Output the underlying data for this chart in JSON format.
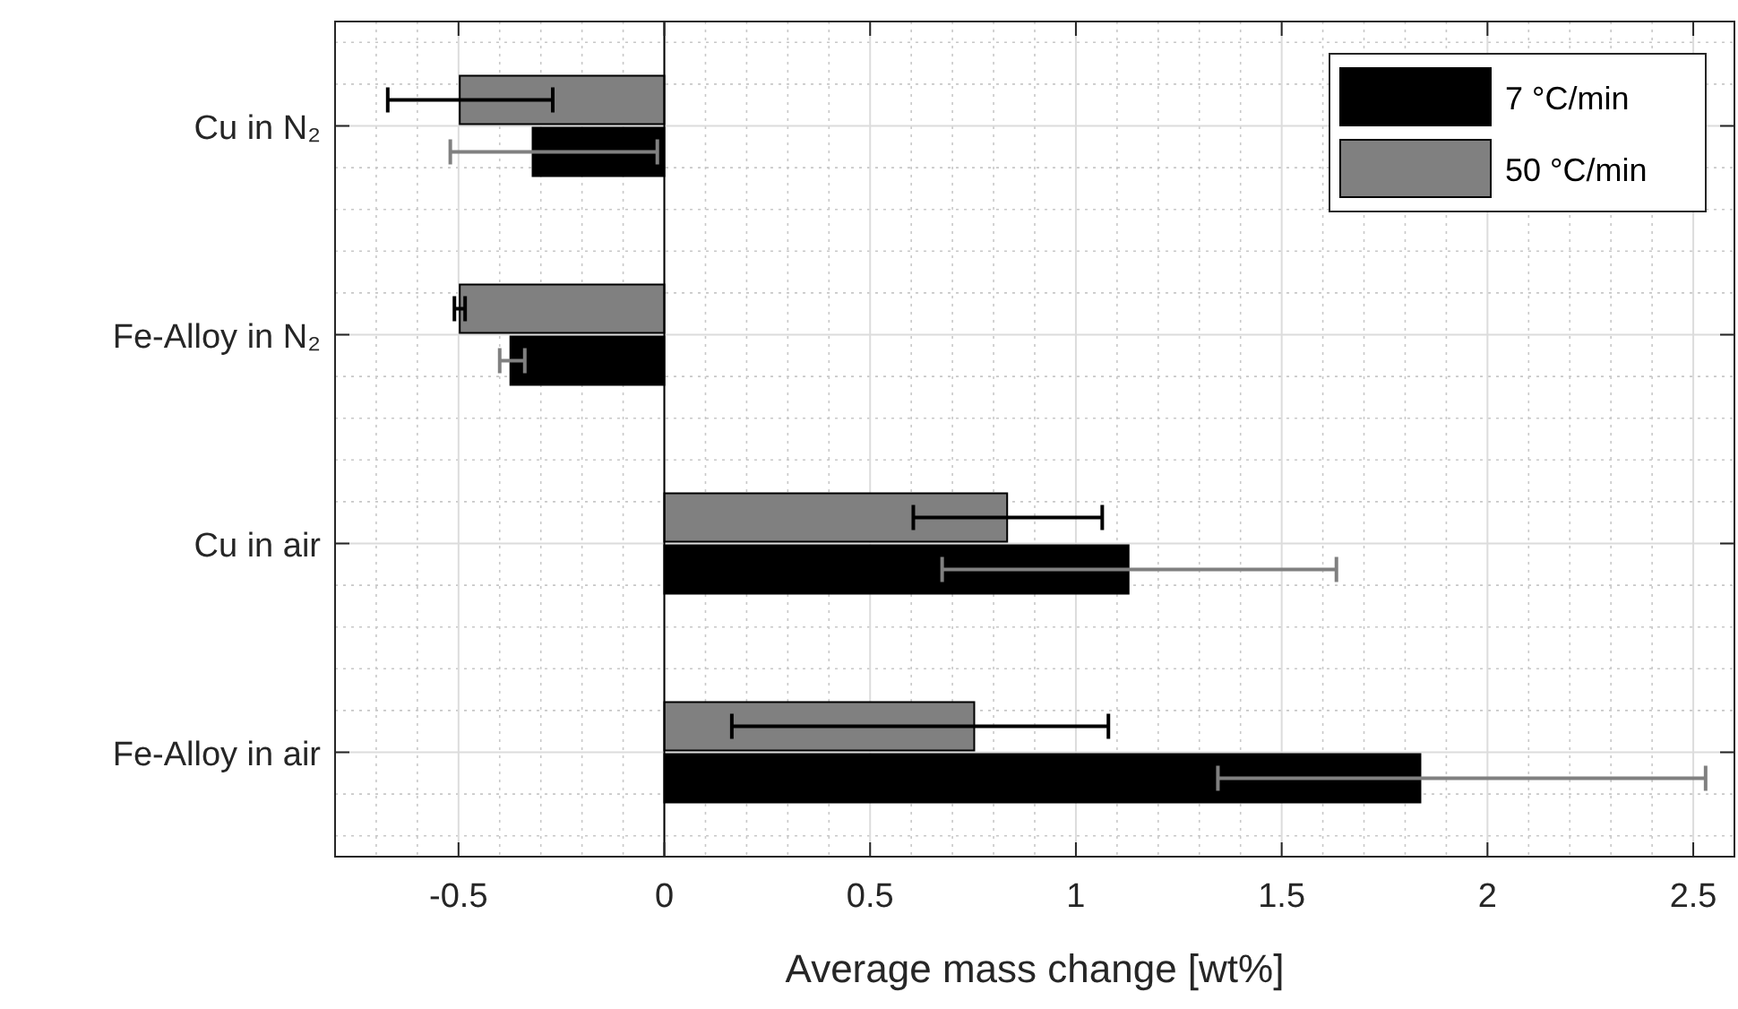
{
  "chart_data": {
    "type": "bar",
    "orientation": "horizontal",
    "xlabel": "Average mass change [wt%]",
    "categories": [
      "Cu in N₂",
      "Fe-Alloy in N₂",
      "Cu in air",
      "Fe-Alloy in air"
    ],
    "series": [
      {
        "name": "7 °C/min",
        "color": "#000000",
        "values": [
          -0.32,
          -0.374,
          1.128,
          1.837
        ],
        "errors": [
          [
            -0.52,
            -0.017
          ],
          [
            -0.4,
            -0.339
          ],
          [
            0.675,
            1.633
          ],
          [
            1.345,
            2.53
          ]
        ]
      },
      {
        "name": "50 °C/min",
        "color": "#808080",
        "values": [
          -0.497,
          -0.497,
          0.833,
          0.753
        ],
        "errors": [
          [
            -0.672,
            -0.271
          ],
          [
            -0.51,
            -0.484
          ],
          [
            0.605,
            1.064
          ],
          [
            0.164,
            1.079
          ]
        ]
      }
    ],
    "xlim": [
      -0.8,
      2.6
    ],
    "xticks": [
      -0.5,
      0,
      0.5,
      1,
      1.5,
      2,
      2.5
    ],
    "grid": true,
    "legend": "top right"
  }
}
